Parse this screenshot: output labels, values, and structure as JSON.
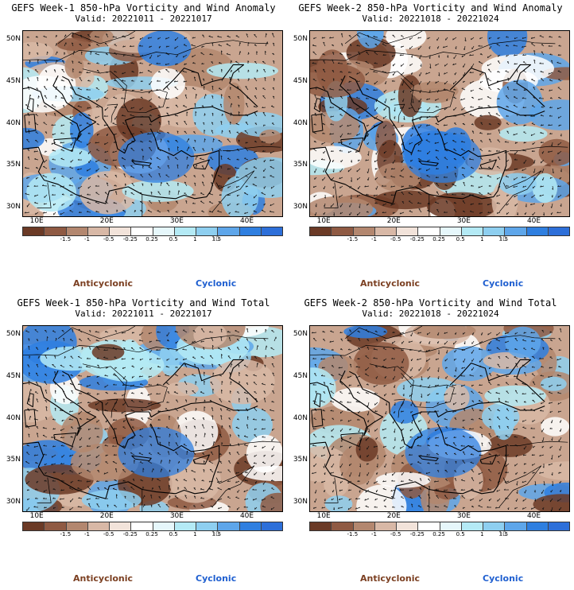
{
  "panels": [
    {
      "title": "GEFS Week-1 850-hPa Vorticity and Wind Anomaly",
      "valid": "Valid: 20221011 - 20221017"
    },
    {
      "title": "GEFS Week-2 850-hPa Vorticity and Wind Anomaly",
      "valid": "Valid: 20221018 - 20221024"
    },
    {
      "title": "GEFS Week-1 850-hPa Vorticity and Wind Total",
      "valid": "Valid: 20221011 - 20221017"
    },
    {
      "title": "GEFS Week-2 850-hPa Vorticity and Wind Total",
      "valid": "Valid: 20221018 - 20221024"
    }
  ],
  "lat_ticks": [
    "50N",
    "45N",
    "40N",
    "35N",
    "30N"
  ],
  "lon_ticks": [
    "10E",
    "20E",
    "30E",
    "40E"
  ],
  "colorbar": {
    "labels": [
      "-1.5",
      "-1",
      "-0.5",
      "-0.25",
      "0.25",
      "0.5",
      "1",
      "1.5"
    ],
    "scale_label": "10",
    "colors": [
      "#6b3a26",
      "#8f5a43",
      "#b3876f",
      "#d8b8a6",
      "#f2e3da",
      "#ffffff",
      "#e6f7fb",
      "#b4eaf5",
      "#8ecff0",
      "#5ea6ea",
      "#2f7fe0",
      "#2d6fd9"
    ]
  },
  "legend": {
    "anticyclonic": "Anticyclonic",
    "cyclonic": "Cyclonic"
  }
}
